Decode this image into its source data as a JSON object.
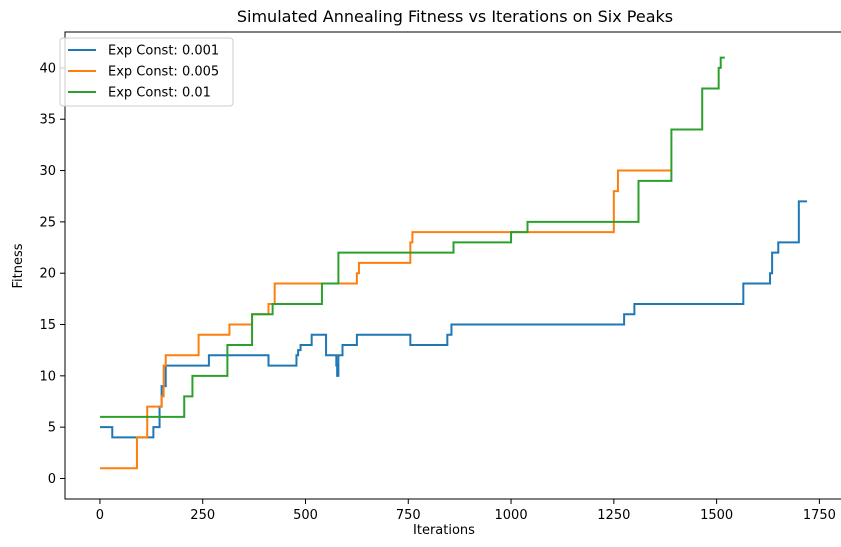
{
  "chart_data": {
    "type": "line",
    "title": "Simulated Annealing Fitness vs Iterations on Six Peaks",
    "xlabel": "Iterations",
    "ylabel": "Fitness",
    "xlim": [
      -85,
      1805
    ],
    "ylim": [
      -2,
      43.5
    ],
    "xticks": [
      0,
      250,
      500,
      750,
      1000,
      1250,
      1500,
      1750
    ],
    "yticks": [
      0,
      5,
      10,
      15,
      20,
      25,
      30,
      35,
      40
    ],
    "grid": false,
    "legend_position": "top-left",
    "series": [
      {
        "name": "Exp Const: 0.001",
        "color": "#1f77b4",
        "x": [
          0,
          30,
          30,
          130,
          130,
          145,
          145,
          150,
          150,
          160,
          160,
          265,
          265,
          410,
          410,
          478,
          478,
          482,
          482,
          488,
          488,
          515,
          515,
          550,
          550,
          575,
          575,
          577,
          577,
          580,
          580,
          585,
          585,
          590,
          590,
          625,
          625,
          755,
          755,
          845,
          845,
          855,
          855,
          1275,
          1275,
          1300,
          1300,
          1565,
          1565,
          1630,
          1630,
          1635,
          1635,
          1650,
          1650,
          1700,
          1700,
          1720
        ],
        "y": [
          5,
          5,
          4,
          4,
          5,
          5,
          7,
          7,
          9,
          9,
          11,
          11,
          12,
          12,
          11,
          11,
          12,
          12,
          12.5,
          12.5,
          13,
          13,
          14,
          14,
          12,
          12,
          11,
          11,
          10,
          10,
          12,
          12,
          12,
          12,
          13,
          13,
          14,
          14,
          13,
          13,
          14,
          14,
          15,
          15,
          16,
          16,
          17,
          17,
          19,
          19,
          20,
          20,
          22,
          22,
          23,
          23,
          27,
          27
        ]
      },
      {
        "name": "Exp Const: 0.005",
        "color": "#ff7f0e",
        "x": [
          0,
          90,
          90,
          115,
          115,
          150,
          150,
          155,
          155,
          160,
          160,
          240,
          240,
          315,
          315,
          370,
          370,
          410,
          410,
          425,
          425,
          625,
          625,
          630,
          630,
          755,
          755,
          760,
          760,
          1250,
          1250,
          1260,
          1260,
          1390
        ],
        "y": [
          1,
          1,
          4,
          4,
          7,
          7,
          8,
          8,
          11,
          11,
          12,
          12,
          14,
          14,
          15,
          15,
          16,
          16,
          17,
          17,
          19,
          19,
          20,
          20,
          21,
          21,
          23,
          23,
          24,
          24,
          28,
          28,
          30,
          30
        ]
      },
      {
        "name": "Exp Const: 0.01",
        "color": "#2ca02c",
        "x": [
          0,
          205,
          205,
          225,
          225,
          310,
          310,
          370,
          370,
          420,
          420,
          540,
          540,
          580,
          580,
          860,
          860,
          1000,
          1000,
          1040,
          1040,
          1310,
          1310,
          1390,
          1390,
          1465,
          1465,
          1505,
          1505,
          1510,
          1510,
          1520
        ],
        "y": [
          6,
          6,
          8,
          8,
          10,
          10,
          13,
          13,
          16,
          16,
          17,
          17,
          19,
          19,
          22,
          22,
          23,
          23,
          24,
          24,
          25,
          25,
          29,
          29,
          34,
          34,
          38,
          38,
          40,
          40,
          41,
          41
        ]
      }
    ]
  }
}
